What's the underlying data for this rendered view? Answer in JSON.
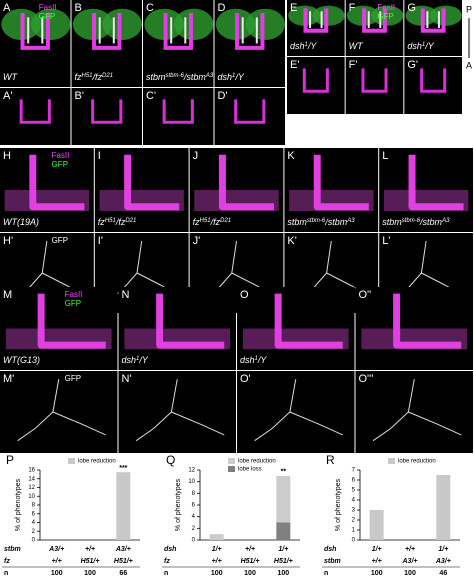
{
  "panels": [
    {
      "letter": "A",
      "genotype": [
        "WT"
      ],
      "stains": [
        {
          "text": "FasII",
          "color": "#ff40ff"
        },
        {
          "text": "GFP",
          "color": "#40ff40"
        }
      ]
    },
    {
      "letter": "B",
      "genotype": [
        "fz",
        "H51",
        "/fz",
        "D21"
      ]
    },
    {
      "letter": "C",
      "genotype": [
        "stbm",
        "stbm-6",
        "/stbm",
        "A3"
      ]
    },
    {
      "letter": "D",
      "genotype": [
        "dsh",
        "1",
        "/Y"
      ]
    },
    {
      "letter": "E",
      "genotype": [
        "dsh",
        "1",
        "/Y"
      ]
    },
    {
      "letter": "F",
      "genotype": [
        "WT"
      ],
      "stains": [
        {
          "text": "FasII",
          "color": "#ff40ff"
        },
        {
          "text": "GFP",
          "color": "#40ff40"
        }
      ]
    },
    {
      "letter": "G",
      "genotype": [
        "dsh",
        "1",
        "/Y"
      ]
    },
    {
      "letter": "A'"
    },
    {
      "letter": "B'"
    },
    {
      "letter": "C'"
    },
    {
      "letter": "D'"
    },
    {
      "letter": "E'"
    },
    {
      "letter": "F'"
    },
    {
      "letter": "G'"
    },
    {
      "letter": "H",
      "genotype": [
        "WT(19A)"
      ],
      "stains": [
        {
          "text": "FasII",
          "color": "#ff40ff"
        },
        {
          "text": "GFP",
          "color": "#40ff40"
        }
      ]
    },
    {
      "letter": "I",
      "genotype": [
        "fz",
        "H51",
        "/fz",
        "D21"
      ]
    },
    {
      "letter": "J",
      "genotype": [
        "fz",
        "H51",
        "/fz",
        "D21"
      ]
    },
    {
      "letter": "K",
      "genotype": [
        "stbm",
        "stbm-6",
        "/stbm",
        "A3"
      ]
    },
    {
      "letter": "L",
      "genotype": [
        "stbm",
        "stbm-6",
        "/stbm",
        "A3"
      ]
    },
    {
      "letter": "H'",
      "stains": [
        {
          "text": "GFP",
          "color": "#ffffff"
        }
      ]
    },
    {
      "letter": "I'"
    },
    {
      "letter": "J'"
    },
    {
      "letter": "K'"
    },
    {
      "letter": "L'"
    },
    {
      "letter": "M",
      "genotype": [
        "WT(G13)"
      ],
      "stains": [
        {
          "text": "FasII",
          "color": "#ff40ff"
        },
        {
          "text": "GFP",
          "color": "#40ff40"
        }
      ]
    },
    {
      "letter": "N",
      "genotype": [
        "dsh",
        "1",
        "/Y"
      ]
    },
    {
      "letter": "O",
      "genotype": [
        "dsh",
        "1",
        "/Y"
      ]
    },
    {
      "letter": "O''"
    },
    {
      "letter": "M'",
      "stains": [
        {
          "text": "GFP",
          "color": "#ffffff"
        }
      ]
    },
    {
      "letter": "N'"
    },
    {
      "letter": "O'"
    },
    {
      "letter": "O'''"
    }
  ],
  "orientation": {
    "top": "P",
    "bottom": "A"
  },
  "chart_data": [
    {
      "type": "bar",
      "label": "P",
      "y_label": "% of phenotypes",
      "ylim": [
        0,
        16
      ],
      "yticks": [
        0,
        2,
        4,
        6,
        8,
        10,
        12,
        14,
        16
      ],
      "series": [
        {
          "name": "lobe reduction",
          "color": "#c8c8c8",
          "values": [
            0,
            0,
            15.5
          ]
        }
      ],
      "significance": [
        null,
        null,
        "***"
      ],
      "rows": [
        {
          "label": "stbm",
          "values": [
            "A3/+",
            "+/+",
            "A3/+"
          ]
        },
        {
          "label": "fz",
          "values": [
            "+/+",
            "H51/+",
            "H51/+"
          ]
        },
        {
          "label": "n",
          "values": [
            100,
            100,
            66
          ]
        }
      ]
    },
    {
      "type": "bar",
      "label": "Q",
      "y_label": "% of phenotypes",
      "ylim": [
        0,
        12
      ],
      "yticks": [
        0,
        2,
        4,
        6,
        8,
        10,
        12
      ],
      "series": [
        {
          "name": "lobe reduction",
          "color": "#cccccc",
          "values": [
            1,
            0,
            8
          ]
        },
        {
          "name": "lobe loss",
          "color": "#808080",
          "values": [
            0,
            0,
            3
          ]
        }
      ],
      "significance": [
        null,
        null,
        "**"
      ],
      "rows": [
        {
          "label": "dsh",
          "values": [
            "1/+",
            "+/+",
            "1/+"
          ]
        },
        {
          "label": "fz",
          "values": [
            "+/+",
            "H51/+",
            "H51/+"
          ]
        },
        {
          "label": "n",
          "values": [
            100,
            100,
            100
          ]
        }
      ]
    },
    {
      "type": "bar",
      "label": "R",
      "y_label": "% of phenotypes",
      "ylim": [
        0,
        7
      ],
      "yticks": [
        0,
        1,
        2,
        3,
        4,
        5,
        6,
        7
      ],
      "series": [
        {
          "name": "lobe reduction",
          "color": "#c8c8c8",
          "values": [
            3,
            0,
            6.5
          ]
        }
      ],
      "rows": [
        {
          "label": "dsh",
          "values": [
            "1/+",
            "+/+",
            "1/+"
          ]
        },
        {
          "label": "stbm",
          "values": [
            "+/+",
            "A3/+",
            "A3/+"
          ]
        },
        {
          "label": "n",
          "values": [
            100,
            100,
            46
          ]
        }
      ]
    }
  ]
}
